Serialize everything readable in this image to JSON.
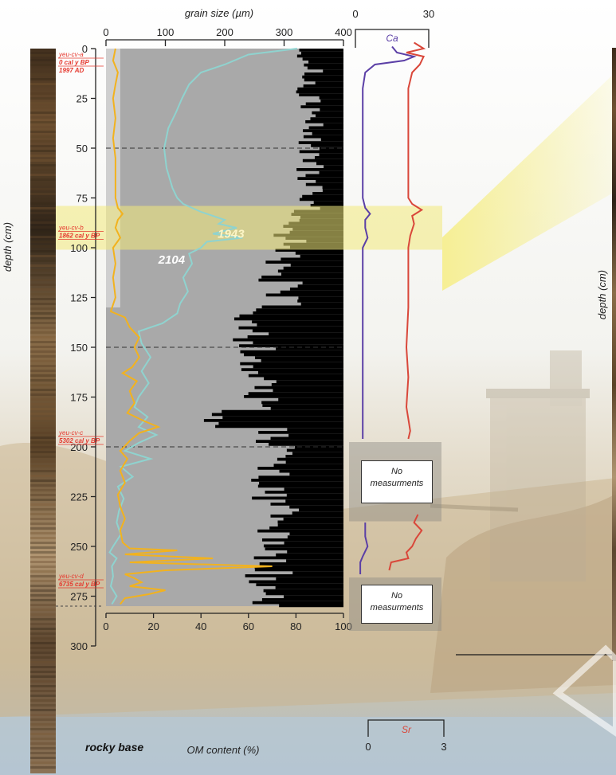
{
  "colors": {
    "om_curve": "#f2b21e",
    "grain_curve": "#8fd3cf",
    "ca_curve": "#5b3fa6",
    "sr_curve": "#d9473a",
    "core_label": "#e5382e",
    "highlight": "#f3ea7a",
    "mineral_bars": "#000000",
    "panel_bg": "#a9a9a9"
  },
  "chart_data": [
    {
      "type": "line",
      "title": "",
      "axes": {
        "top_label": "grain size (µm)",
        "top_ticks": [
          "0",
          "100",
          "200",
          "300",
          "400"
        ],
        "bottom_label": "OM content (%)",
        "bottom_ticks": [
          "0",
          "20",
          "40",
          "60",
          "80",
          "100"
        ],
        "left_label": "depth (cm)",
        "depth_ticks": [
          "0",
          "25",
          "50",
          "75",
          "100",
          "125",
          "150",
          "175",
          "200",
          "225",
          "250",
          "275",
          "300"
        ],
        "depth_range": [
          0,
          300
        ],
        "om_range": [
          0,
          100
        ],
        "grain_range": [
          0,
          400
        ],
        "dashed_depths": [
          50,
          150,
          200
        ]
      },
      "base_label": "rocky base",
      "base_depth": 280,
      "highlight_band": [
        79,
        101
      ],
      "annotations": [
        {
          "text": "1943",
          "depth": 93,
          "grain_um": 215
        },
        {
          "text": "2104",
          "depth": 106,
          "grain_um": 115
        }
      ],
      "dates": [
        {
          "lines": [
            "yeu-cv-a",
            "0 cal y BP",
            "1997 AD"
          ],
          "depth": 0
        },
        {
          "lines": [
            "yeu-cv-b",
            "1862 cal y BP"
          ],
          "depth": 87
        },
        {
          "lines": [
            "yeu-cv-c",
            "5302 cal y BP"
          ],
          "depth": 190
        },
        {
          "lines": [
            "yeu-cv-d",
            "6735 cal y BP"
          ],
          "depth": 262
        }
      ],
      "series": [
        {
          "key": "om",
          "points": [
            [
              0,
              4
            ],
            [
              6,
              3
            ],
            [
              12,
              5
            ],
            [
              18,
              4
            ],
            [
              25,
              3
            ],
            [
              35,
              4
            ],
            [
              45,
              3
            ],
            [
              55,
              4
            ],
            [
              65,
              4
            ],
            [
              75,
              4
            ],
            [
              80,
              5
            ],
            [
              83,
              7
            ],
            [
              86,
              5
            ],
            [
              90,
              4
            ],
            [
              95,
              6
            ],
            [
              100,
              3
            ],
            [
              108,
              4
            ],
            [
              115,
              3
            ],
            [
              125,
              4
            ],
            [
              132,
              2
            ],
            [
              135,
              8
            ],
            [
              140,
              10
            ],
            [
              145,
              14
            ],
            [
              150,
              12
            ],
            [
              155,
              14
            ],
            [
              160,
              11
            ],
            [
              163,
              7
            ],
            [
              167,
              13
            ],
            [
              172,
              10
            ],
            [
              178,
              12
            ],
            [
              183,
              9
            ],
            [
              187,
              16
            ],
            [
              190,
              22
            ],
            [
              193,
              14
            ],
            [
              197,
              10
            ],
            [
              202,
              6
            ],
            [
              206,
              9
            ],
            [
              212,
              6
            ],
            [
              218,
              8
            ],
            [
              224,
              5
            ],
            [
              230,
              6
            ],
            [
              236,
              8
            ],
            [
              242,
              6
            ],
            [
              248,
              7
            ],
            [
              251,
              10
            ],
            [
              252,
              30
            ],
            [
              254,
              8
            ],
            [
              256,
              45
            ],
            [
              258,
              10
            ],
            [
              260,
              70
            ],
            [
              262,
              25
            ],
            [
              264,
              8
            ],
            [
              266,
              12
            ],
            [
              268,
              15
            ],
            [
              270,
              10
            ],
            [
              272,
              25
            ],
            [
              274,
              18
            ],
            [
              276,
              8
            ],
            [
              279,
              6
            ]
          ]
        },
        {
          "key": "grain",
          "points": [
            [
              0,
              322
            ],
            [
              3,
              240
            ],
            [
              8,
              200
            ],
            [
              12,
              160
            ],
            [
              18,
              140
            ],
            [
              25,
              128
            ],
            [
              32,
              118
            ],
            [
              40,
              105
            ],
            [
              50,
              98
            ],
            [
              60,
              102
            ],
            [
              70,
              112
            ],
            [
              75,
              120
            ],
            [
              78,
              130
            ],
            [
              82,
              160
            ],
            [
              86,
              200
            ],
            [
              88,
              190
            ],
            [
              90,
              220
            ],
            [
              93,
              180
            ],
            [
              95,
              230
            ],
            [
              97,
              170
            ],
            [
              100,
              160
            ],
            [
              103,
              140
            ],
            [
              108,
              145
            ],
            [
              115,
              130
            ],
            [
              122,
              138
            ],
            [
              128,
              125
            ],
            [
              133,
              120
            ],
            [
              138,
              95
            ],
            [
              142,
              55
            ],
            [
              148,
              60
            ],
            [
              155,
              75
            ],
            [
              162,
              60
            ],
            [
              168,
              72
            ],
            [
              175,
              55
            ],
            [
              180,
              48
            ],
            [
              185,
              70
            ],
            [
              190,
              55
            ],
            [
              194,
              85
            ],
            [
              198,
              55
            ],
            [
              202,
              32
            ],
            [
              206,
              75
            ],
            [
              210,
              25
            ],
            [
              215,
              45
            ],
            [
              220,
              20
            ],
            [
              226,
              30
            ],
            [
              232,
              22
            ],
            [
              238,
              18
            ],
            [
              244,
              25
            ],
            [
              250,
              12
            ],
            [
              253,
              6
            ],
            [
              256,
              18
            ],
            [
              260,
              10
            ],
            [
              265,
              12
            ],
            [
              270,
              8
            ],
            [
              275,
              18
            ],
            [
              279,
              10
            ]
          ]
        }
      ]
    },
    {
      "type": "line",
      "axes": {
        "ca_label": "Ca",
        "ca_ticks": [
          "0",
          "30"
        ],
        "sr_label": "Sr",
        "sr_ticks": [
          "0",
          "3"
        ]
      },
      "gaps": [
        {
          "from": 200,
          "to": 235,
          "text": [
            "No",
            "measurments"
          ]
        },
        {
          "from": 268,
          "to": 290,
          "text": [
            "No",
            "measurments"
          ]
        }
      ],
      "series": [
        {
          "key": "ca",
          "name": "Ca",
          "unit_max": 30,
          "points": [
            [
              -1,
              15
            ],
            [
              2,
              17
            ],
            [
              4,
              24
            ],
            [
              6,
              20
            ],
            [
              8,
              8
            ],
            [
              12,
              4
            ],
            [
              20,
              3
            ],
            [
              40,
              3
            ],
            [
              60,
              3
            ],
            [
              75,
              3
            ],
            [
              80,
              4
            ],
            [
              83,
              6
            ],
            [
              86,
              4
            ],
            [
              90,
              4
            ],
            [
              95,
              5
            ],
            [
              100,
              3
            ],
            [
              130,
              3
            ],
            [
              160,
              3
            ],
            [
              180,
              3
            ],
            [
              196,
              3
            ],
            [
              238,
              4
            ],
            [
              245,
              4
            ],
            [
              250,
              5
            ],
            [
              255,
              3
            ],
            [
              258,
              2
            ],
            [
              261,
              2
            ],
            [
              264,
              2
            ]
          ]
        },
        {
          "key": "sr",
          "name": "Sr",
          "unit_max": 3,
          "points": [
            [
              -3,
              2.4
            ],
            [
              0,
              2.9
            ],
            [
              2,
              2.0
            ],
            [
              4,
              2.9
            ],
            [
              8,
              2.7
            ],
            [
              10,
              2.5
            ],
            [
              12,
              2.3
            ],
            [
              20,
              2.1
            ],
            [
              40,
              2.1
            ],
            [
              60,
              2.1
            ],
            [
              75,
              2.1
            ],
            [
              78,
              2.3
            ],
            [
              81,
              2.8
            ],
            [
              84,
              2.3
            ],
            [
              88,
              2.4
            ],
            [
              94,
              2.2
            ],
            [
              100,
              2.1
            ],
            [
              130,
              2.1
            ],
            [
              150,
              2.0
            ],
            [
              165,
              2.1
            ],
            [
              180,
              2.0
            ],
            [
              192,
              2.2
            ],
            [
              196,
              2.1
            ],
            [
              234,
              2.6
            ],
            [
              238,
              2.4
            ],
            [
              242,
              2.8
            ],
            [
              246,
              2.5
            ],
            [
              250,
              2.3
            ],
            [
              253,
              2.0
            ],
            [
              256,
              2.1
            ],
            [
              258,
              1.2
            ],
            [
              262,
              1.1
            ]
          ]
        }
      ]
    },
    {
      "type": "line",
      "axes": {
        "left_label": "depth (cm)"
      }
    }
  ]
}
